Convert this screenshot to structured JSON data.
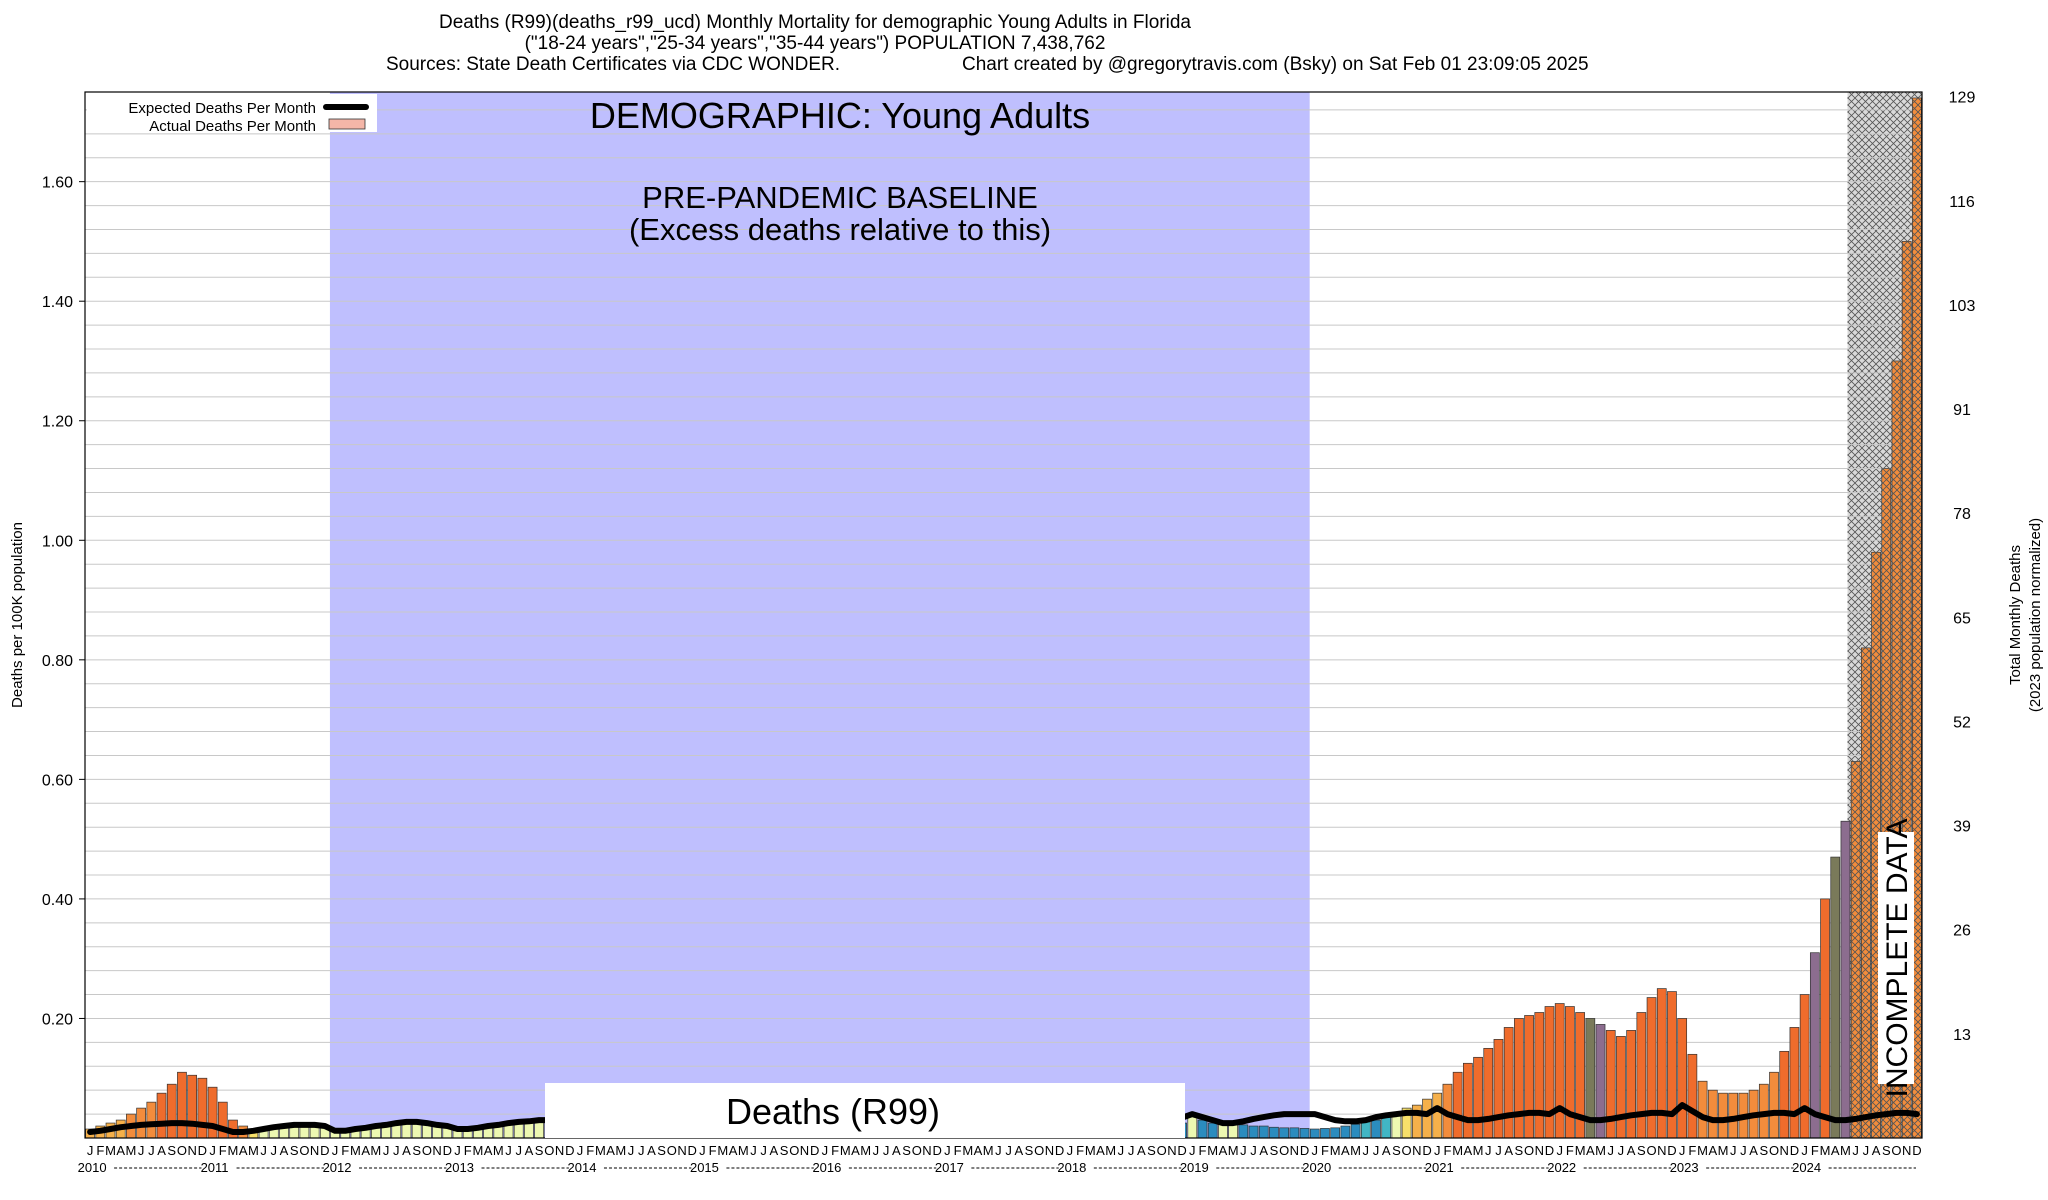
{
  "header": {
    "title": "Deaths (R99)(deaths_r99_ucd) Monthly Mortality for demographic Young Adults in Florida",
    "subtitle": "(\"18-24 years\",\"25-34 years\",\"35-44 years\") POPULATION 7,438,762",
    "sources": "Sources: State Death Certificates via CDC WONDER.",
    "credit": "Chart created by @gregorytravis.com (Bsky) on Sat Feb 01 23:09:05 2025"
  },
  "annotations": {
    "demographic": "DEMOGRAPHIC: Young Adults",
    "baseline_line1": "PRE-PANDEMIC BASELINE",
    "baseline_line2": "(Excess deaths relative to this)",
    "cause_box": "Deaths (R99)",
    "incomplete": "INCOMPLETE DATA"
  },
  "colors": {
    "baseline_band": "#bfbffe",
    "hatch_band": "#cccccc",
    "expected_line": "#000000",
    "actual_swatch": "#f4b6a8",
    "scale": [
      "#2b8cbe",
      "#41b6c4",
      "#7fcdbb",
      "#c7e9b4",
      "#edf8b1",
      "#f7e06a",
      "#f5b04a",
      "#f28c3c",
      "#ef6c2c",
      "#8c6d8f",
      "#7a7a5a"
    ]
  },
  "chart_data": {
    "type": "bar",
    "title": "Deaths (R99)(deaths_r99_ucd) Monthly Mortality for demographic Young Adults in Florida",
    "ylabel": "Deaths per 100K population",
    "ylabel_right": [
      "Total Monthly Deaths",
      "(2023 population normalized)"
    ],
    "ylim": [
      0,
      1.75
    ],
    "y_ticks": [
      "0.20",
      "0.40",
      "0.60",
      "0.80",
      "1.00",
      "1.20",
      "1.40",
      "1.60"
    ],
    "right_ticks": [
      "13",
      "26",
      "39",
      "52",
      "65",
      "78",
      "91",
      "103",
      "116",
      "129"
    ],
    "x_start": "2010-01",
    "x_end": "2024-12",
    "month_letters": [
      "J",
      "F",
      "M",
      "A",
      "M",
      "J",
      "J",
      "A",
      "S",
      "O",
      "N",
      "D"
    ],
    "year_labels": [
      "2010",
      "2011",
      "2012",
      "2013",
      "2014",
      "2015",
      "2016",
      "2017",
      "2018",
      "2019",
      "2020",
      "2021",
      "2022",
      "2023",
      "2024"
    ],
    "legend": [
      {
        "label": "Expected Deaths Per Month"
      },
      {
        "label": "Actual Deaths Per Month"
      }
    ],
    "baseline_period": [
      "2012-01",
      "2019-12"
    ],
    "incomplete_period": [
      "2024-06",
      "2024-12"
    ],
    "series": [
      {
        "name": "Actual Deaths Per Month",
        "values": [
          0.015,
          0.02,
          0.025,
          0.03,
          0.04,
          0.05,
          0.06,
          0.075,
          0.09,
          0.11,
          0.105,
          0.1,
          0.085,
          0.06,
          0.03,
          0.02,
          0.015,
          0.015,
          0.02,
          0.02,
          0.025,
          0.025,
          0.025,
          0.02,
          0.012,
          0.012,
          0.015,
          0.017,
          0.02,
          0.022,
          0.025,
          0.027,
          0.027,
          0.025,
          0.022,
          0.02,
          0.015,
          0.015,
          0.017,
          0.02,
          0.022,
          0.025,
          0.027,
          0.028,
          0.03,
          0.03,
          0.028,
          0.025,
          0.02,
          0.02,
          0.022,
          0.025,
          0.027,
          0.028,
          0.03,
          0.03,
          0.03,
          0.028,
          0.027,
          0.025,
          0.02,
          0.02,
          0.022,
          0.025,
          0.027,
          0.028,
          0.03,
          0.03,
          0.03,
          0.028,
          0.027,
          0.025,
          0.02,
          0.02,
          0.022,
          0.025,
          0.027,
          0.028,
          0.03,
          0.03,
          0.03,
          0.028,
          0.027,
          0.025,
          0.02,
          0.02,
          0.022,
          0.025,
          0.027,
          0.028,
          0.03,
          0.03,
          0.03,
          0.028,
          0.027,
          0.025,
          0.02,
          0.02,
          0.022,
          0.025,
          0.027,
          0.028,
          0.03,
          0.03,
          0.03,
          0.028,
          0.027,
          0.025,
          0.04,
          0.03,
          0.025,
          0.025,
          0.025,
          0.022,
          0.02,
          0.02,
          0.018,
          0.017,
          0.017,
          0.016,
          0.015,
          0.016,
          0.017,
          0.02,
          0.023,
          0.027,
          0.03,
          0.035,
          0.04,
          0.05,
          0.055,
          0.065,
          0.075,
          0.09,
          0.11,
          0.125,
          0.135,
          0.15,
          0.165,
          0.185,
          0.2,
          0.205,
          0.21,
          0.22,
          0.225,
          0.22,
          0.21,
          0.2,
          0.19,
          0.18,
          0.17,
          0.18,
          0.21,
          0.235,
          0.25,
          0.245,
          0.2,
          0.14,
          0.095,
          0.08,
          0.075,
          0.075,
          0.075,
          0.08,
          0.09,
          0.11,
          0.145,
          0.185,
          0.24,
          0.31,
          0.4,
          0.47,
          0.53,
          0.63,
          0.82,
          0.98,
          1.12,
          1.3,
          1.5,
          1.74
        ]
      },
      {
        "name": "Expected Deaths Per Month",
        "values": [
          0.01,
          0.012,
          0.015,
          0.018,
          0.02,
          0.022,
          0.023,
          0.024,
          0.025,
          0.025,
          0.024,
          0.022,
          0.02,
          0.015,
          0.01,
          0.01,
          0.012,
          0.015,
          0.018,
          0.02,
          0.022,
          0.022,
          0.022,
          0.02,
          0.012,
          0.012,
          0.015,
          0.017,
          0.02,
          0.022,
          0.025,
          0.027,
          0.027,
          0.025,
          0.022,
          0.02,
          0.015,
          0.015,
          0.017,
          0.02,
          0.022,
          0.025,
          0.027,
          0.028,
          0.03,
          0.03,
          0.028,
          0.025,
          0.02,
          0.02,
          0.022,
          0.025,
          0.027,
          0.028,
          0.03,
          0.03,
          0.03,
          0.028,
          0.027,
          0.025,
          0.02,
          0.02,
          0.022,
          0.025,
          0.027,
          0.028,
          0.03,
          0.03,
          0.03,
          0.028,
          0.027,
          0.025,
          0.02,
          0.02,
          0.022,
          0.025,
          0.027,
          0.028,
          0.03,
          0.03,
          0.03,
          0.028,
          0.027,
          0.025,
          0.02,
          0.02,
          0.022,
          0.025,
          0.027,
          0.028,
          0.03,
          0.03,
          0.03,
          0.028,
          0.027,
          0.025,
          0.035,
          0.04,
          0.035,
          0.03,
          0.025,
          0.025,
          0.028,
          0.03,
          0.033,
          0.035,
          0.035,
          0.034,
          0.04,
          0.035,
          0.03,
          0.025,
          0.025,
          0.028,
          0.032,
          0.035,
          0.038,
          0.04,
          0.04,
          0.04,
          0.04,
          0.035,
          0.03,
          0.028,
          0.028,
          0.03,
          0.035,
          0.038,
          0.04,
          0.042,
          0.042,
          0.04,
          0.05,
          0.04,
          0.035,
          0.03,
          0.03,
          0.032,
          0.035,
          0.038,
          0.04,
          0.042,
          0.042,
          0.04,
          0.05,
          0.04,
          0.035,
          0.03,
          0.03,
          0.032,
          0.035,
          0.038,
          0.04,
          0.042,
          0.042,
          0.04,
          0.055,
          0.045,
          0.035,
          0.03,
          0.03,
          0.032,
          0.035,
          0.038,
          0.04,
          0.042,
          0.042,
          0.04,
          0.05,
          0.04,
          0.035,
          0.03,
          0.03,
          0.032,
          0.035,
          0.038,
          0.04,
          0.042,
          0.042,
          0.04
        ]
      }
    ]
  }
}
